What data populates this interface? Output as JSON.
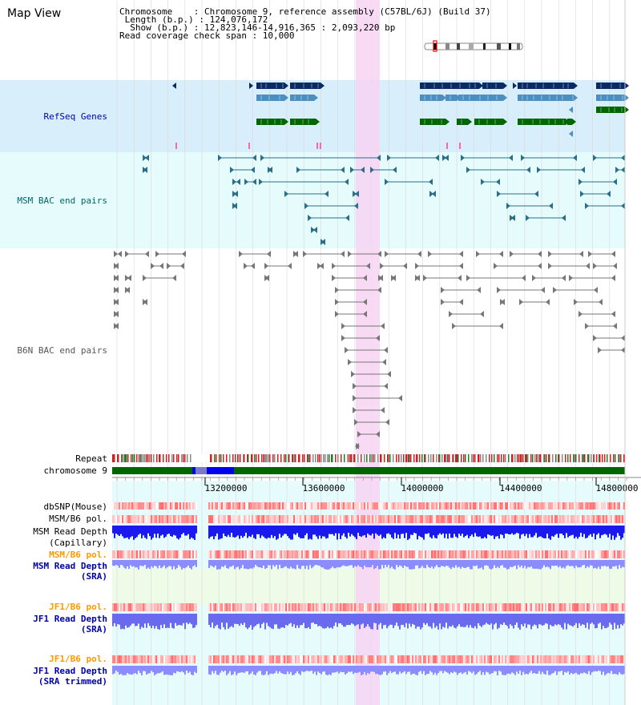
{
  "view_title": "Map View",
  "info": {
    "line1": "Chromosome    : Chromosome 9, reference assembly (C57BL/6J) (Build 37)",
    "line2": " Length (b.p.) : 124,076,172",
    "line3": "  Show (b.p.) : 12,823,146-14,916,365 : 2,093,220 bp",
    "line4": "Read coverage check span : 10,000"
  },
  "tracks": {
    "refseq": {
      "label": "RefSeq Genes",
      "color": "#0000aa"
    },
    "msm_bac": {
      "label": "MSM BAC end pairs",
      "color": "#006666"
    },
    "b6n_bac": {
      "label": "B6N BAC end pairs",
      "color": "#555555"
    },
    "repeat": {
      "label": "Repeat"
    },
    "chromosome": {
      "label": "chromosome 9"
    },
    "dbsnp": {
      "label": "dbSNP(Mouse)"
    },
    "msm_b6_pol_1": {
      "label": "MSM/B6 pol."
    },
    "msm_depth_cap": {
      "label": "MSM Read Depth",
      "label2": "(Capillary)"
    },
    "msm_b6_pol_2": {
      "label": "MSM/B6 pol.",
      "color": "#ff9900"
    },
    "msm_depth_sra": {
      "label": "MSM Read Depth",
      "label2": "(SRA)",
      "color": "#0000aa"
    },
    "jf1_b6_pol_1": {
      "label": "JF1/B6 pol.",
      "color": "#ff9900"
    },
    "jf1_depth_sra": {
      "label": "JF1 Read Depth",
      "label2": "(SRA)",
      "color": "#0000aa"
    },
    "jf1_b6_pol_2": {
      "label": "JF1/B6 pol.",
      "color": "#ff9900"
    },
    "jf1_depth_trim": {
      "label": "JF1 Read Depth",
      "label2": "(SRA trimmed)",
      "color": "#0000aa"
    }
  },
  "ruler": {
    "ticks": [
      "13200000",
      "13600000",
      "14000000",
      "14400000",
      "14800000"
    ]
  },
  "colors": {
    "refseq_bg": "#d8eefa",
    "msm_bg": "#e6fbfb",
    "highlight": "#f7d4f3",
    "gene_navy": "#0a2a66",
    "gene_steel": "#4c8fbf",
    "gene_green": "#006600",
    "repeat_red": "#cc2222",
    "chrom_green": "#006600",
    "chrom_blue": "#0000ee",
    "depth_blue": "#1a1aee",
    "sra_blue": "#8c8cff"
  }
}
